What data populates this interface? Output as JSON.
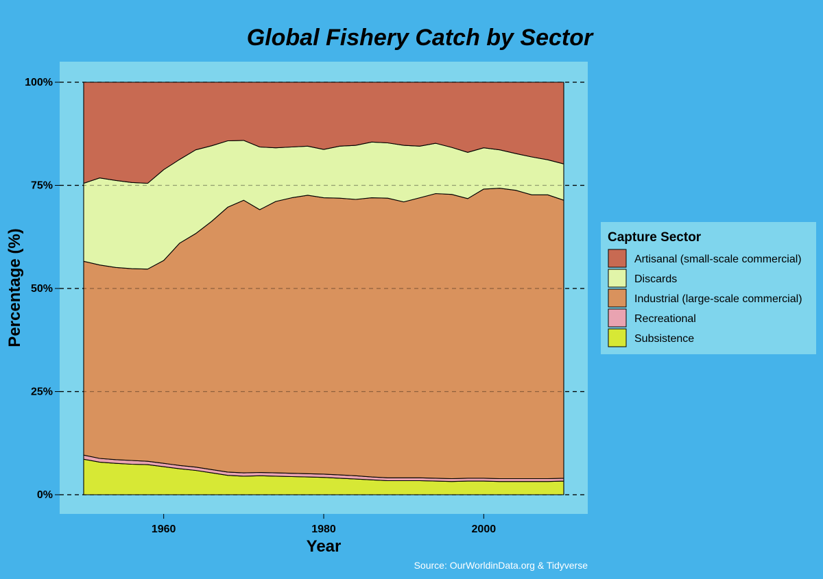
{
  "chart_data": {
    "type": "area",
    "stacked": true,
    "normalized_percent": true,
    "title": "Global Fishery Catch by Sector",
    "xlabel": "Year",
    "ylabel": "Percentage (%)",
    "xlim": [
      1950,
      2010
    ],
    "ylim": [
      0,
      100
    ],
    "x_ticks": [
      1960,
      1980,
      2000
    ],
    "y_ticks": [
      0,
      25,
      50,
      75,
      100
    ],
    "y_tick_labels": [
      "0%",
      "25%",
      "50%",
      "75%",
      "100%"
    ],
    "grid": "horizontal dashed",
    "legend_title": "Capture Sector",
    "legend_position": "right",
    "source": "Source: OurWorldinData.org & Tidyverse",
    "x": [
      1950,
      1952,
      1954,
      1956,
      1958,
      1960,
      1962,
      1964,
      1966,
      1968,
      1970,
      1972,
      1974,
      1976,
      1978,
      1980,
      1982,
      1984,
      1986,
      1988,
      1990,
      1992,
      1994,
      1996,
      1998,
      2000,
      2002,
      2004,
      2006,
      2008,
      2010
    ],
    "series": [
      {
        "name": "Subsistence",
        "color": "#d7e835",
        "values": [
          8.6,
          7.9,
          7.6,
          7.4,
          7.3,
          6.8,
          6.3,
          5.9,
          5.3,
          4.7,
          4.5,
          4.6,
          4.5,
          4.4,
          4.3,
          4.2,
          4.0,
          3.8,
          3.6,
          3.4,
          3.4,
          3.4,
          3.3,
          3.2,
          3.3,
          3.3,
          3.2,
          3.2,
          3.2,
          3.2,
          3.3
        ]
      },
      {
        "name": "Recreational",
        "color": "#e9a3b1",
        "values": [
          1.0,
          0.9,
          0.9,
          0.9,
          0.8,
          0.8,
          0.8,
          0.8,
          0.8,
          0.8,
          0.8,
          0.8,
          0.8,
          0.8,
          0.8,
          0.8,
          0.8,
          0.8,
          0.7,
          0.7,
          0.7,
          0.7,
          0.7,
          0.7,
          0.7,
          0.7,
          0.7,
          0.7,
          0.7,
          0.7,
          0.7
        ]
      },
      {
        "name": "Industrial (large-scale commercial)",
        "color": "#d9925d",
        "values": [
          47.0,
          46.9,
          46.6,
          46.5,
          46.6,
          49.2,
          53.9,
          56.6,
          60.2,
          64.2,
          66.1,
          63.7,
          65.8,
          66.8,
          67.5,
          67.0,
          67.1,
          67.0,
          67.7,
          67.8,
          66.9,
          67.9,
          69.0,
          68.9,
          67.8,
          70.1,
          70.4,
          69.9,
          68.8,
          68.8,
          67.4
        ]
      },
      {
        "name": "Discards",
        "color": "#e1f5a9",
        "values": [
          18.9,
          21.1,
          21.1,
          20.9,
          20.8,
          22.0,
          20.3,
          20.3,
          18.3,
          16.1,
          14.5,
          15.2,
          13.0,
          12.3,
          11.9,
          11.7,
          12.6,
          13.1,
          13.5,
          13.4,
          13.7,
          12.5,
          12.2,
          11.4,
          11.2,
          10.0,
          9.3,
          8.9,
          9.2,
          8.5,
          8.8
        ]
      },
      {
        "name": "Artisanal (small-scale commercial)",
        "color": "#c86a52",
        "values": [
          24.5,
          23.2,
          23.8,
          24.3,
          24.5,
          21.2,
          18.7,
          16.4,
          15.4,
          14.2,
          14.1,
          15.7,
          15.9,
          15.7,
          15.5,
          16.3,
          15.5,
          15.3,
          14.5,
          14.7,
          15.3,
          15.5,
          14.8,
          15.8,
          17.0,
          15.9,
          16.4,
          17.3,
          18.1,
          18.8,
          19.8
        ]
      }
    ],
    "legend_order": [
      "Artisanal (small-scale commercial)",
      "Discards",
      "Industrial (large-scale commercial)",
      "Recreational",
      "Subsistence"
    ]
  }
}
